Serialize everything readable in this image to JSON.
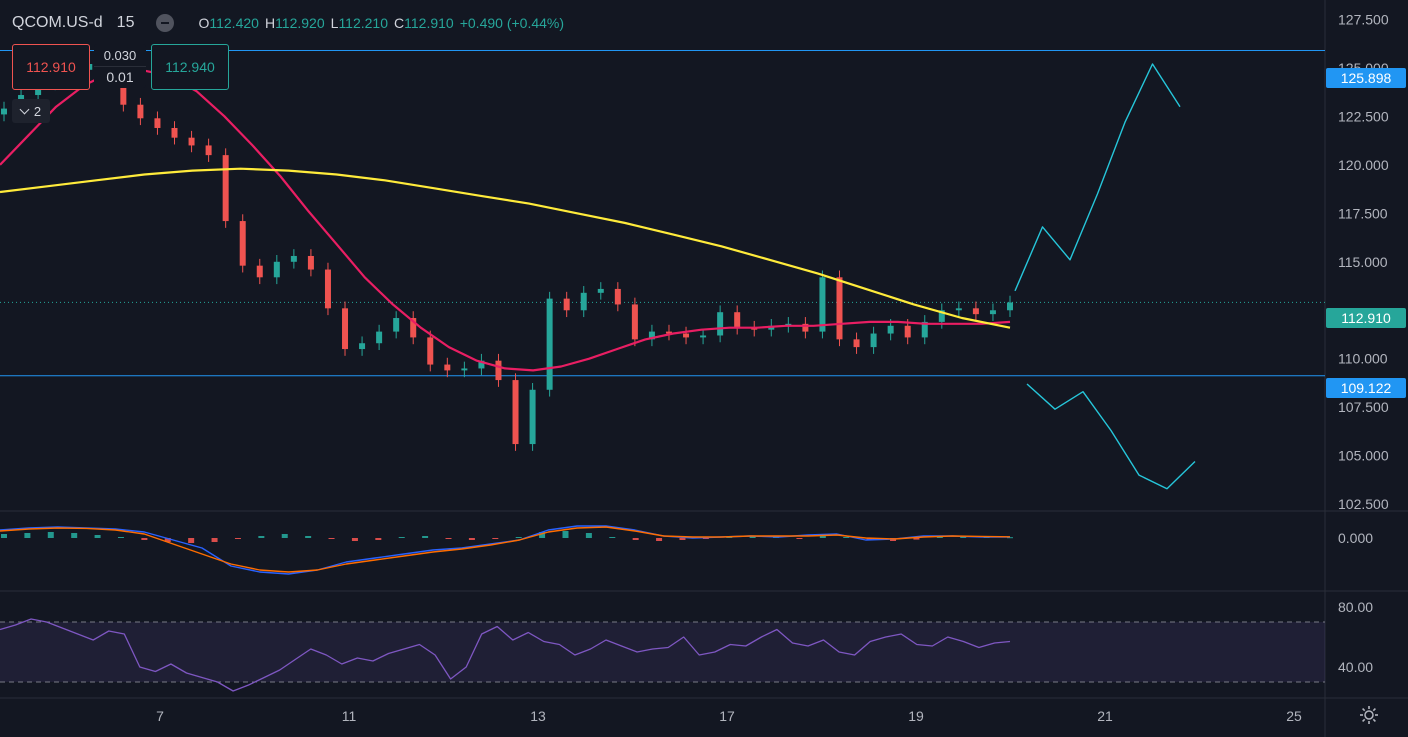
{
  "header": {
    "symbol": "QCOM.US-d",
    "timeframe": "15",
    "open_label": "O",
    "open": "112.420",
    "high_label": "H",
    "high": "112.920",
    "low_label": "L",
    "low": "112.210",
    "close_label": "C",
    "close": "112.910",
    "change": "+0.490 (+0.44%)"
  },
  "trade_panel": {
    "sell_price": "112.910",
    "buy_price": "112.940",
    "spread_top": "0.030",
    "spread_bottom": "0.01"
  },
  "indicators_collapsed": {
    "count": "2"
  },
  "price_tags": {
    "resistance": "125.898",
    "current": "112.910",
    "support": "109.122"
  },
  "colors": {
    "background": "#131722",
    "up": "#26a69a",
    "down": "#ef5350",
    "ma_fast": "#e91e63",
    "ma_slow": "#ffeb3b",
    "level_line": "#2196f3",
    "current_tag": "#26a69a",
    "drawing": "#26c6da",
    "rsi": "#7e57c2",
    "macd": "#2962ff",
    "signal": "#ff6d00"
  },
  "icons": [
    "minus-circle-icon",
    "chevron-up-icon",
    "gear-icon"
  ],
  "chart_data": [
    {
      "type": "candlestick",
      "x_ticks": [
        "7",
        "11",
        "13",
        "17",
        "19",
        "21",
        "25"
      ],
      "y_ticks": [
        "127.500",
        "125.000",
        "122.500",
        "120.000",
        "117.500",
        "115.000",
        "110.000",
        "107.500",
        "105.000",
        "102.500"
      ],
      "ylim": [
        102.2,
        128.5
      ],
      "horizontal_levels": [
        125.898,
        109.122
      ],
      "last_price": 112.91,
      "series": [
        {
          "role": "close",
          "values": [
            122.9,
            123.6,
            124.2,
            124.6,
            124.9,
            125.2,
            125.4,
            123.1,
            122.4,
            121.9,
            121.4,
            121.0,
            120.5,
            117.1,
            114.8,
            114.2,
            115.0,
            115.3,
            114.6,
            112.6,
            110.5,
            110.8,
            111.4,
            112.1,
            111.1,
            109.7,
            109.4,
            109.5,
            109.9,
            108.9,
            105.6,
            108.4,
            113.1,
            112.5,
            113.4,
            113.6,
            112.8,
            111.0,
            111.4,
            111.3,
            111.1,
            111.2,
            112.4,
            111.6,
            111.5,
            111.7,
            111.8,
            111.4,
            114.2,
            111.0,
            110.6,
            111.3,
            111.7,
            111.1,
            111.9,
            112.5,
            112.6,
            112.3,
            112.5,
            112.9
          ]
        },
        {
          "role": "ma_fast",
          "values": [
            120.0,
            121.5,
            123.0,
            124.1,
            124.8,
            124.9,
            124.6,
            123.8,
            122.5,
            121.0,
            119.4,
            117.6,
            115.9,
            114.2,
            112.8,
            111.6,
            110.6,
            109.9,
            109.5,
            109.4,
            109.6,
            110.0,
            110.5,
            111.0,
            111.3,
            111.5,
            111.6,
            111.6,
            111.7,
            111.7,
            111.8,
            111.9,
            111.9,
            111.8,
            111.8,
            111.8,
            111.9
          ]
        },
        {
          "role": "ma_slow",
          "values": [
            118.6,
            118.9,
            119.2,
            119.5,
            119.7,
            119.8,
            119.7,
            119.5,
            119.2,
            118.8,
            118.4,
            118.0,
            117.5,
            117.0,
            116.4,
            115.8,
            115.1,
            114.4,
            113.6,
            112.8,
            112.1,
            111.6
          ]
        },
        {
          "role": "projection_up",
          "values": [
            113.5,
            116.8,
            115.1,
            118.5,
            122.2,
            125.2,
            123.0
          ]
        },
        {
          "role": "projection_down",
          "values": [
            108.7,
            107.4,
            108.3,
            106.3,
            104.0,
            103.3,
            104.7
          ]
        }
      ]
    },
    {
      "type": "histogram",
      "y_ticks": [
        "0.000"
      ],
      "series": [
        {
          "role": "histogram",
          "values": [
            0.2,
            0.25,
            0.3,
            0.25,
            0.15,
            0.05,
            -0.1,
            -0.2,
            -0.25,
            -0.2,
            -0.05,
            0.1,
            0.2,
            0.1,
            -0.05,
            -0.15,
            -0.1,
            0.05,
            0.1,
            -0.05,
            -0.1,
            -0.05,
            0.05,
            0.3,
            0.35,
            0.25,
            0.05,
            -0.1,
            -0.15,
            -0.1,
            -0.05,
            0.05,
            0.08,
            0.06,
            -0.05,
            0.1,
            0.05,
            -0.1,
            -0.15,
            -0.08,
            0.05,
            0.08,
            0.06,
            0.04
          ]
        },
        {
          "role": "macd",
          "values": [
            0.4,
            0.5,
            0.55,
            0.5,
            0.45,
            0.3,
            -0.1,
            -0.5,
            -1.4,
            -1.7,
            -1.8,
            -1.6,
            -1.2,
            -1.0,
            -0.8,
            -0.6,
            -0.5,
            -0.3,
            -0.1,
            0.4,
            0.6,
            0.6,
            0.4,
            0.1,
            0.0,
            0.05,
            0.1,
            0.05,
            0.15,
            0.2,
            -0.1,
            -0.05,
            0.1,
            0.1,
            0.05,
            0.05
          ]
        },
        {
          "role": "signal",
          "values": [
            0.35,
            0.45,
            0.5,
            0.48,
            0.4,
            0.2,
            -0.3,
            -0.8,
            -1.3,
            -1.6,
            -1.7,
            -1.6,
            -1.3,
            -1.1,
            -0.9,
            -0.7,
            -0.55,
            -0.35,
            -0.1,
            0.3,
            0.5,
            0.55,
            0.35,
            0.1,
            0.05,
            0.05,
            0.1,
            0.1,
            0.1,
            0.15,
            0.0,
            -0.05,
            0.05,
            0.1,
            0.08,
            0.06
          ]
        }
      ]
    },
    {
      "type": "line",
      "y_ticks": [
        "80.00",
        "40.00"
      ],
      "ylim": [
        20,
        90
      ],
      "bands": [
        70,
        30
      ],
      "series": [
        {
          "role": "rsi",
          "values": [
            65,
            68,
            72,
            70,
            66,
            62,
            58,
            64,
            62,
            40,
            37,
            42,
            36,
            33,
            30,
            24,
            28,
            33,
            38,
            45,
            52,
            48,
            42,
            46,
            44,
            49,
            52,
            55,
            48,
            32,
            40,
            62,
            67,
            58,
            63,
            57,
            55,
            48,
            52,
            58,
            54,
            50,
            52,
            53,
            60,
            48,
            50,
            55,
            54,
            60,
            65,
            56,
            54,
            58,
            50,
            48,
            57,
            60,
            62,
            55,
            54,
            60,
            57,
            53,
            56,
            57
          ]
        }
      ]
    }
  ]
}
